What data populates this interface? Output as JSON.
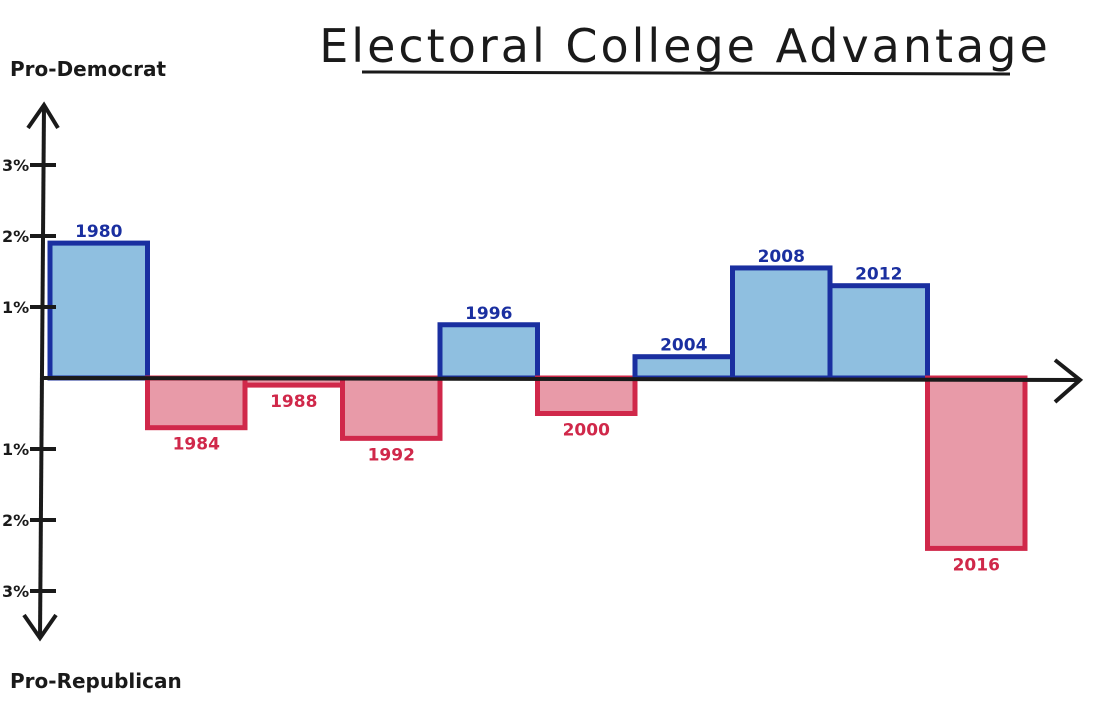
{
  "chart_data": {
    "type": "bar",
    "title": "Electoral College Advantage",
    "ylabel_top": "Pro-Democrat",
    "ylabel_bottom": "Pro-Republican",
    "categories": [
      "1980",
      "1984",
      "1988",
      "1992",
      "1996",
      "2000",
      "2004",
      "2008",
      "2012",
      "2016"
    ],
    "values": [
      1.9,
      -0.7,
      -0.1,
      -0.85,
      0.75,
      -0.5,
      0.3,
      1.55,
      1.3,
      -2.4
    ],
    "ylim": [
      -3.5,
      3.5
    ],
    "yticks": [
      {
        "value": 3,
        "label": "3%"
      },
      {
        "value": 2,
        "label": "2%"
      },
      {
        "value": 1,
        "label": "1%"
      },
      {
        "value": -1,
        "label": "1%"
      },
      {
        "value": -2,
        "label": "2%"
      },
      {
        "value": -3,
        "label": "3%"
      }
    ],
    "grid": false,
    "colors": {
      "positive_fill": "#8fbfe0",
      "positive_stroke": "#1a2fa0",
      "negative_fill": "#e89aa8",
      "negative_stroke": "#d0284a",
      "axis": "#1a1a1a"
    }
  }
}
